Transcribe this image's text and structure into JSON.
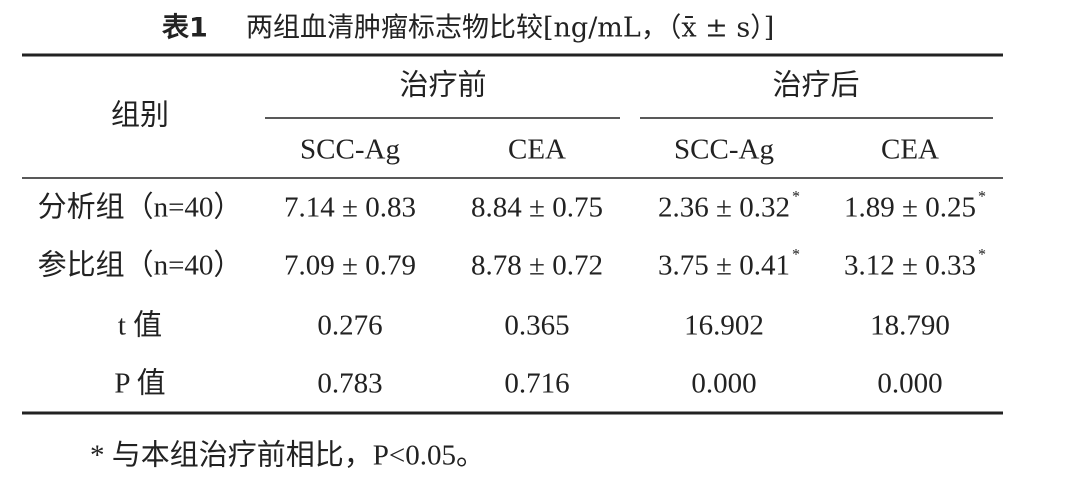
{
  "table": {
    "title": {
      "number": "表1",
      "text": "两组血清肿瘤标志物比较[ng/mL，（x̄ ± s）]"
    },
    "row_header": "组别",
    "groups": [
      "治疗前",
      "治疗后"
    ],
    "columns": [
      "SCC-Ag",
      "CEA",
      "SCC-Ag",
      "CEA"
    ],
    "rows": [
      {
        "label": "分析组（n=40）",
        "cells": [
          {
            "text": "7.14 ± 0.83"
          },
          {
            "text": "8.84 ± 0.75"
          },
          {
            "text": "2.36 ± 0.32",
            "sup": "*"
          },
          {
            "text": "1.89 ± 0.25",
            "sup": "*"
          }
        ]
      },
      {
        "label": "参比组（n=40）",
        "cells": [
          {
            "text": "7.09 ± 0.79"
          },
          {
            "text": "8.78 ± 0.72"
          },
          {
            "text": "3.75 ± 0.41",
            "sup": "*"
          },
          {
            "text": "3.12 ± 0.33",
            "sup": "*"
          }
        ]
      },
      {
        "label": "t 值",
        "cells": [
          {
            "text": "0.276"
          },
          {
            "text": "0.365"
          },
          {
            "text": "16.902"
          },
          {
            "text": "18.790"
          }
        ]
      },
      {
        "label": "P 值",
        "cells": [
          {
            "text": "0.783"
          },
          {
            "text": "0.716"
          },
          {
            "text": "0.000"
          },
          {
            "text": "0.000"
          }
        ]
      }
    ],
    "footnote": "* 与本组治疗前相比，P<0.05。"
  }
}
